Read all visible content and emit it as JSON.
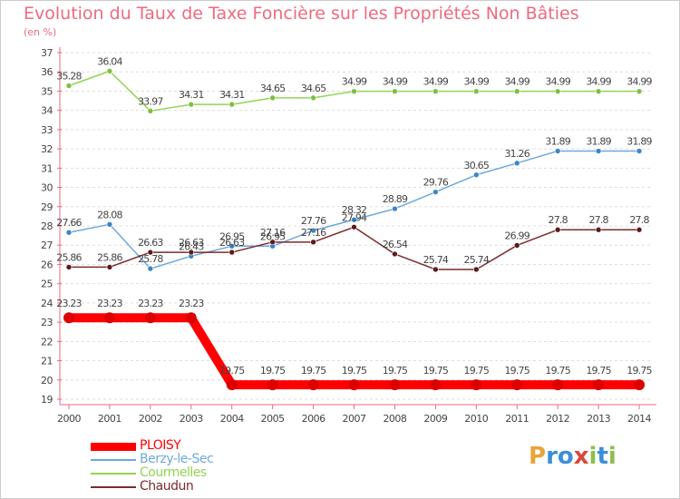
{
  "chart_data": {
    "type": "line",
    "title": "Evolution du Taux de Taxe Foncière sur les Propriétés Non Bâties",
    "subtitle": "(en %)",
    "xlabel": "",
    "ylabel": "",
    "ylim": [
      19,
      37
    ],
    "grid": "horizontal-dashed",
    "legend_position": "bottom-left",
    "categories": [
      "2000",
      "2001",
      "2002",
      "2003",
      "2004",
      "2005",
      "2006",
      "2007",
      "2008",
      "2009",
      "2010",
      "2011",
      "2012",
      "2013",
      "2014"
    ],
    "y_ticks": [
      "19",
      "20",
      "21",
      "22",
      "23",
      "24",
      "25",
      "26",
      "27",
      "28",
      "29",
      "30",
      "31",
      "32",
      "33",
      "34",
      "35",
      "36",
      "37"
    ],
    "series": [
      {
        "name": "PLOISY",
        "color": "#ff0000",
        "marker_color": "#dd0000",
        "values": [
          23.23,
          23.23,
          23.23,
          23.23,
          19.75,
          19.75,
          19.75,
          19.75,
          19.75,
          19.75,
          19.75,
          19.75,
          19.75,
          19.75,
          19.75
        ],
        "labels": [
          "23.23",
          "23.23",
          "23.23",
          "23.23",
          "19.75",
          "19.75",
          "19.75",
          "19.75",
          "19.75",
          "19.75",
          "19.75",
          "19.75",
          "19.75",
          "19.75",
          "19.75"
        ]
      },
      {
        "name": "Berzy-le-Sec",
        "color": "#6fa8dc",
        "marker_color": "#3d85c6",
        "values": [
          27.66,
          28.08,
          25.78,
          26.43,
          26.95,
          26.95,
          27.76,
          28.32,
          28.89,
          29.76,
          30.65,
          31.26,
          31.89,
          31.89,
          31.89
        ],
        "labels": [
          "27.66",
          "28.08",
          "25.78",
          "26.43",
          "26.95",
          "26.95",
          "27.76",
          "28.32",
          "28.89",
          "29.76",
          "30.65",
          "31.26",
          "31.89",
          "31.89",
          "31.89"
        ]
      },
      {
        "name": "Courmelles",
        "color": "#93d456",
        "marker_color": "#7cc040",
        "values": [
          35.28,
          36.04,
          33.97,
          34.31,
          34.31,
          34.65,
          34.65,
          34.99,
          34.99,
          34.99,
          34.99,
          34.99,
          34.99,
          34.99,
          34.99
        ],
        "labels": [
          "35.28",
          "36.04",
          "33.97",
          "34.31",
          "34.31",
          "34.65",
          "34.65",
          "34.99",
          "34.99",
          "34.99",
          "34.99",
          "34.99",
          "34.99",
          "34.99",
          "34.99"
        ]
      },
      {
        "name": "Chaudun",
        "color": "#7b2b2b",
        "marker_color": "#5e1a1a",
        "values": [
          25.86,
          25.86,
          26.63,
          26.63,
          26.63,
          27.16,
          27.16,
          27.94,
          26.54,
          25.74,
          25.74,
          26.99,
          27.8,
          27.8,
          27.8
        ],
        "labels": [
          "25.86",
          "25.86",
          "26.63",
          "26.63",
          "26.63",
          "27.16",
          "27.16",
          "27.94",
          "26.54",
          "25.74",
          "25.74",
          "26.99",
          "27.8",
          "27.8",
          "27.8"
        ]
      }
    ]
  },
  "logo": {
    "letters": [
      {
        "char": "P",
        "color": "#e8a33b"
      },
      {
        "char": "r",
        "color": "#3b8fd6"
      },
      {
        "char": "o",
        "color": "#3b8fd6"
      },
      {
        "char": "x",
        "color": "#d9493a"
      },
      {
        "char": "i",
        "color": "#8cc04a"
      },
      {
        "char": "t",
        "color": "#3b8fd6"
      },
      {
        "char": "i",
        "color": "#8cc04a"
      }
    ]
  }
}
